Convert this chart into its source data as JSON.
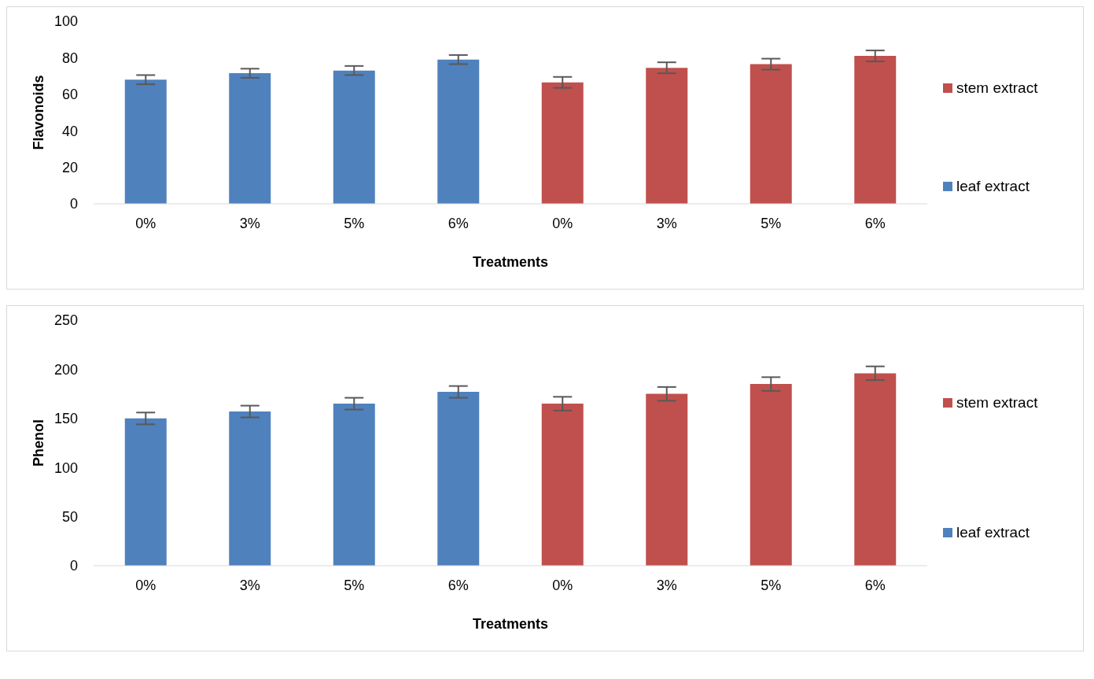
{
  "chart_data": [
    {
      "type": "bar",
      "ylabel": "Flavonoids",
      "xlabel": "Treatments",
      "categories": [
        "0%",
        "3%",
        "5%",
        "6%",
        "0%",
        "3%",
        "5%",
        "6%"
      ],
      "ylim": [
        0,
        100
      ],
      "yticks": [
        0,
        20,
        40,
        60,
        80,
        100
      ],
      "legend": "right",
      "grid": false,
      "series": [
        {
          "name": "leaf extract",
          "color": "#4f81bd",
          "values": [
            68,
            71.5,
            73,
            79,
            null,
            null,
            null,
            null
          ],
          "errors": [
            2.5,
            2.5,
            2.5,
            2.5,
            null,
            null,
            null,
            null
          ]
        },
        {
          "name": "stem extract",
          "color": "#c0504d",
          "values": [
            null,
            null,
            null,
            null,
            66.5,
            74.5,
            76.5,
            81
          ],
          "errors": [
            null,
            null,
            null,
            null,
            3,
            3,
            3,
            3
          ]
        }
      ]
    },
    {
      "type": "bar",
      "ylabel": "Phenol",
      "xlabel": "Treatments",
      "categories": [
        "0%",
        "3%",
        "5%",
        "6%",
        "0%",
        "3%",
        "5%",
        "6%"
      ],
      "ylim": [
        0,
        250
      ],
      "yticks": [
        0,
        50,
        100,
        150,
        200,
        250
      ],
      "legend": "right",
      "grid": false,
      "series": [
        {
          "name": "leaf extract",
          "color": "#4f81bd",
          "values": [
            150,
            157,
            165,
            177,
            null,
            null,
            null,
            null
          ],
          "errors": [
            6,
            6,
            6,
            6,
            null,
            null,
            null,
            null
          ]
        },
        {
          "name": "stem extract",
          "color": "#c0504d",
          "values": [
            null,
            null,
            null,
            null,
            165,
            175,
            185,
            196
          ],
          "errors": [
            null,
            null,
            null,
            null,
            7,
            7,
            7,
            7
          ]
        }
      ]
    }
  ]
}
